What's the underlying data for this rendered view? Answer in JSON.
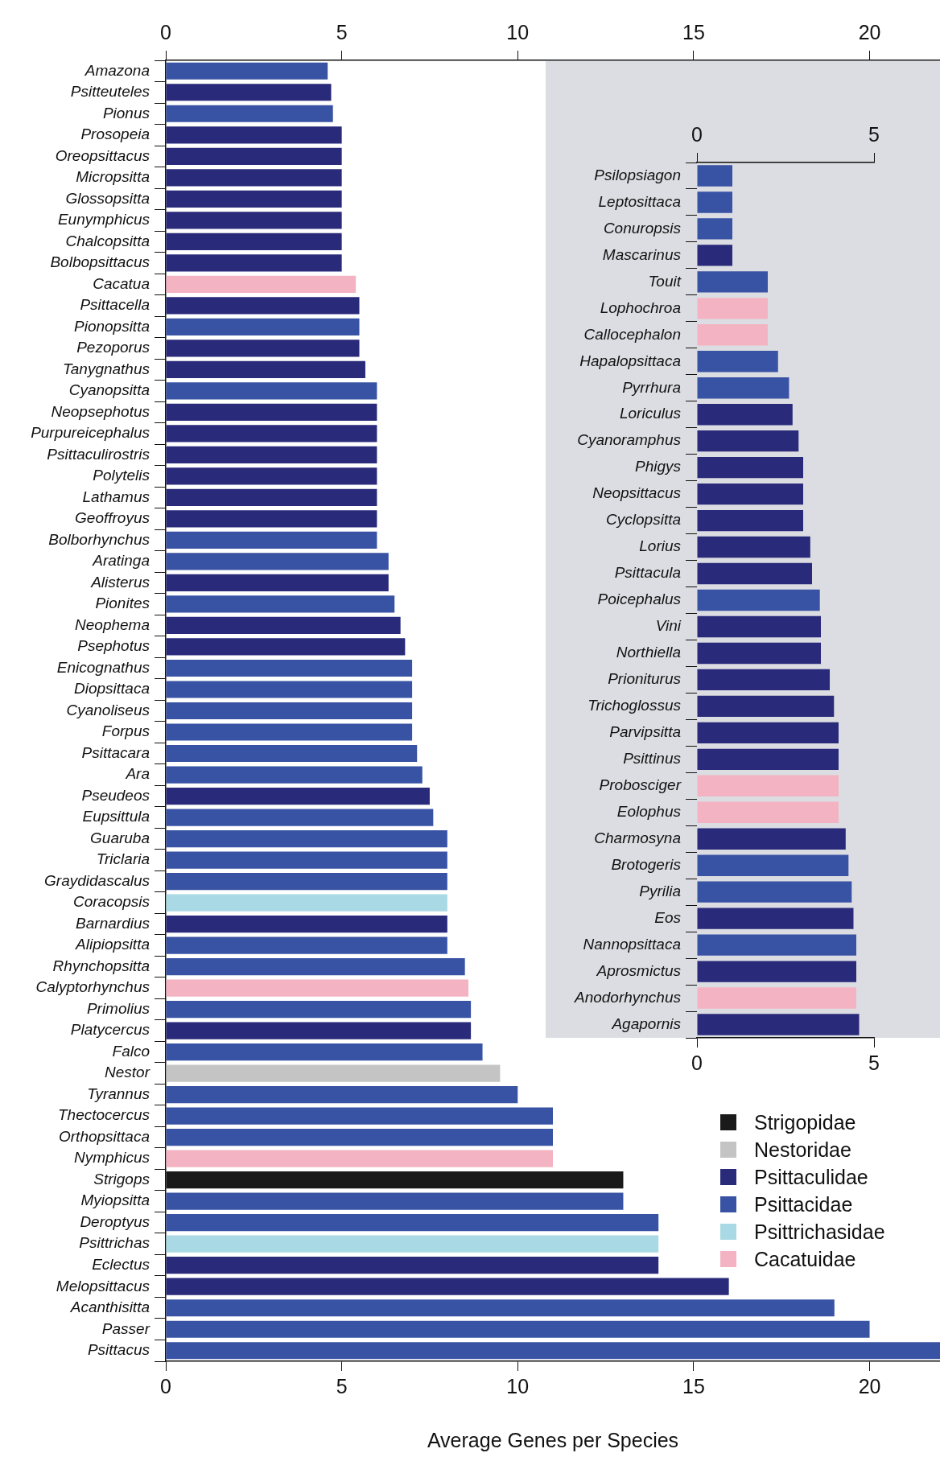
{
  "chart_data": [
    {
      "type": "bar",
      "orientation": "horizontal",
      "xlabel": "Average Genes per Species",
      "legend": "bottom right",
      "categories": [
        "Amazona",
        "Psitteuteles",
        "Pionus",
        "Prosopeia",
        "Oreopsittacus",
        "Micropsitta",
        "Glossopsitta",
        "Eunymphicus",
        "Chalcopsitta",
        "Bolbopsittacus",
        "Cacatua",
        "Psittacella",
        "Pionopsitta",
        "Pezoporus",
        "Tanygnathus",
        "Cyanopsitta",
        "Neopsephotus",
        "Purpureicephalus",
        "Psittaculirostris",
        "Polytelis",
        "Lathamus",
        "Geoffroyus",
        "Bolborhynchus",
        "Aratinga",
        "Alisterus",
        "Pionites",
        "Neophema",
        "Psephotus",
        "Enicognathus",
        "Diopsittaca",
        "Cyanoliseus",
        "Forpus",
        "Psittacara",
        "Ara",
        "Pseudeos",
        "Eupsittula",
        "Guaruba",
        "Triclaria",
        "Graydidascalus",
        "Coracopsis",
        "Barnardius",
        "Alipiopsitta",
        "Rhynchopsitta",
        "Calyptorhynchus",
        "Primolius",
        "Platycercus",
        "Falco",
        "Nestor",
        "Tyrannus",
        "Thectocercus",
        "Orthopsittaca",
        "Nymphicus",
        "Strigops",
        "Myiopsitta",
        "Deroptyus",
        "Psittrichas",
        "Eclectus",
        "Melopsittacus",
        "Acanthisitta",
        "Passer",
        "Psittacus"
      ],
      "series": [
        {
          "name": "Strigopidae",
          "color": "#1a1a1a",
          "values": [
            null,
            null,
            null,
            null,
            null,
            null,
            null,
            null,
            null,
            null,
            null,
            null,
            null,
            null,
            null,
            null,
            null,
            null,
            null,
            null,
            null,
            null,
            null,
            null,
            null,
            null,
            null,
            null,
            null,
            null,
            null,
            null,
            null,
            null,
            null,
            null,
            null,
            null,
            null,
            null,
            null,
            null,
            null,
            null,
            null,
            null,
            null,
            null,
            null,
            null,
            null,
            null,
            13,
            null,
            null,
            null,
            null,
            null,
            null,
            null,
            null
          ]
        },
        {
          "name": "Nestoridae",
          "color": "#c4c4c4",
          "values": [
            null,
            null,
            null,
            null,
            null,
            null,
            null,
            null,
            null,
            null,
            null,
            null,
            null,
            null,
            null,
            null,
            null,
            null,
            null,
            null,
            null,
            null,
            null,
            null,
            null,
            null,
            null,
            null,
            null,
            null,
            null,
            null,
            null,
            null,
            null,
            null,
            null,
            null,
            null,
            null,
            null,
            null,
            null,
            null,
            null,
            null,
            null,
            9.5,
            null,
            null,
            null,
            null,
            null,
            null,
            null,
            null,
            null,
            null,
            null,
            null,
            null
          ]
        },
        {
          "name": "Psittaculidae",
          "color": "#292a7a",
          "values": [
            null,
            4.7,
            null,
            5,
            5,
            5,
            5,
            5,
            5,
            5,
            null,
            5.5,
            null,
            5.5,
            5.67,
            null,
            6,
            6,
            6,
            6,
            6,
            6,
            null,
            null,
            6.33,
            null,
            6.67,
            6.8,
            null,
            null,
            null,
            null,
            null,
            null,
            7.5,
            null,
            null,
            null,
            null,
            null,
            8,
            null,
            null,
            null,
            null,
            8.67,
            null,
            null,
            null,
            null,
            null,
            null,
            null,
            null,
            null,
            null,
            14,
            16,
            null,
            null,
            null
          ]
        },
        {
          "name": "Psittacidae",
          "color": "#3953a4",
          "values": [
            4.6,
            null,
            4.75,
            null,
            null,
            null,
            null,
            null,
            null,
            null,
            null,
            null,
            5.5,
            null,
            null,
            6,
            null,
            null,
            null,
            null,
            null,
            null,
            6,
            6.33,
            null,
            6.5,
            null,
            null,
            7,
            7,
            7,
            7,
            7.14,
            7.29,
            null,
            7.6,
            8,
            8,
            8,
            null,
            null,
            8,
            8.5,
            null,
            8.67,
            null,
            9,
            null,
            10,
            11,
            11,
            null,
            null,
            13,
            14,
            null,
            null,
            null,
            19,
            20,
            22
          ]
        },
        {
          "name": "Psittrichasidae",
          "color": "#a9d9e4",
          "values": [
            null,
            null,
            null,
            null,
            null,
            null,
            null,
            null,
            null,
            null,
            null,
            null,
            null,
            null,
            null,
            null,
            null,
            null,
            null,
            null,
            null,
            null,
            null,
            null,
            null,
            null,
            null,
            null,
            null,
            null,
            null,
            null,
            null,
            null,
            null,
            null,
            null,
            null,
            null,
            8,
            null,
            null,
            null,
            null,
            null,
            null,
            null,
            null,
            null,
            null,
            null,
            null,
            null,
            null,
            null,
            14,
            null,
            null,
            null,
            null,
            null
          ]
        },
        {
          "name": "Cacatuidae",
          "color": "#f4b3c2",
          "values": [
            null,
            null,
            null,
            null,
            null,
            null,
            null,
            null,
            null,
            null,
            5.4,
            null,
            null,
            null,
            null,
            null,
            null,
            null,
            null,
            null,
            null,
            null,
            null,
            null,
            null,
            null,
            null,
            null,
            null,
            null,
            null,
            null,
            null,
            null,
            null,
            null,
            null,
            null,
            null,
            null,
            null,
            null,
            null,
            8.6,
            null,
            null,
            null,
            null,
            null,
            null,
            null,
            11,
            null,
            null,
            null,
            null,
            null,
            null,
            null,
            null,
            null
          ]
        }
      ],
      "xlim": [
        0,
        22
      ],
      "xticks": [
        0,
        5,
        10,
        15,
        20
      ],
      "x2lim": [
        0,
        22
      ],
      "x2ticks": [
        0,
        5,
        10,
        15,
        20
      ]
    },
    {
      "type": "bar",
      "orientation": "horizontal",
      "categories": [
        "Psilopsiagon",
        "Leptosittaca",
        "Conuropsis",
        "Mascarinus",
        "Touit",
        "Lophochroa",
        "Callocephalon",
        "Hapalopsittaca",
        "Pyrrhura",
        "Loriculus",
        "Cyanoramphus",
        "Phigys",
        "Neopsittacus",
        "Cyclopsitta",
        "Lorius",
        "Psittacula",
        "Poicephalus",
        "Vini",
        "Northiella",
        "Prioniturus",
        "Trichoglossus",
        "Parvipsitta",
        "Psittinus",
        "Probosciger",
        "Eolophus",
        "Charmosyna",
        "Brotogeris",
        "Pyrilia",
        "Eos",
        "Nannopsittaca",
        "Aprosmictus",
        "Anodorhynchus",
        "Agapornis"
      ],
      "series": [
        {
          "color": "#292a7a",
          "values": [
            null,
            null,
            null,
            1,
            null,
            null,
            null,
            null,
            null,
            2.7,
            2.87,
            3,
            3,
            3,
            3.2,
            3.25,
            null,
            3.5,
            3.5,
            3.75,
            3.87,
            4,
            4,
            null,
            null,
            4.2,
            null,
            null,
            4.42,
            null,
            4.5,
            null,
            4.58
          ]
        },
        {
          "color": "#3953a4",
          "values": [
            1,
            1,
            1,
            null,
            2,
            null,
            null,
            2.29,
            2.6,
            null,
            null,
            null,
            null,
            null,
            null,
            null,
            3.47,
            null,
            null,
            null,
            null,
            null,
            null,
            null,
            null,
            null,
            4.28,
            4.37,
            null,
            4.5,
            null,
            null,
            null
          ]
        },
        {
          "color": "#f4b3c2",
          "values": [
            null,
            null,
            null,
            null,
            null,
            2,
            2,
            null,
            null,
            null,
            null,
            null,
            null,
            null,
            null,
            null,
            null,
            null,
            null,
            null,
            null,
            null,
            null,
            4,
            4,
            null,
            null,
            null,
            null,
            null,
            null,
            4.5,
            null
          ]
        }
      ],
      "xlim": [
        0,
        5
      ],
      "xticks": [
        0,
        5
      ],
      "x2lim": [
        0,
        5
      ],
      "x2ticks": [
        0,
        5
      ]
    }
  ]
}
